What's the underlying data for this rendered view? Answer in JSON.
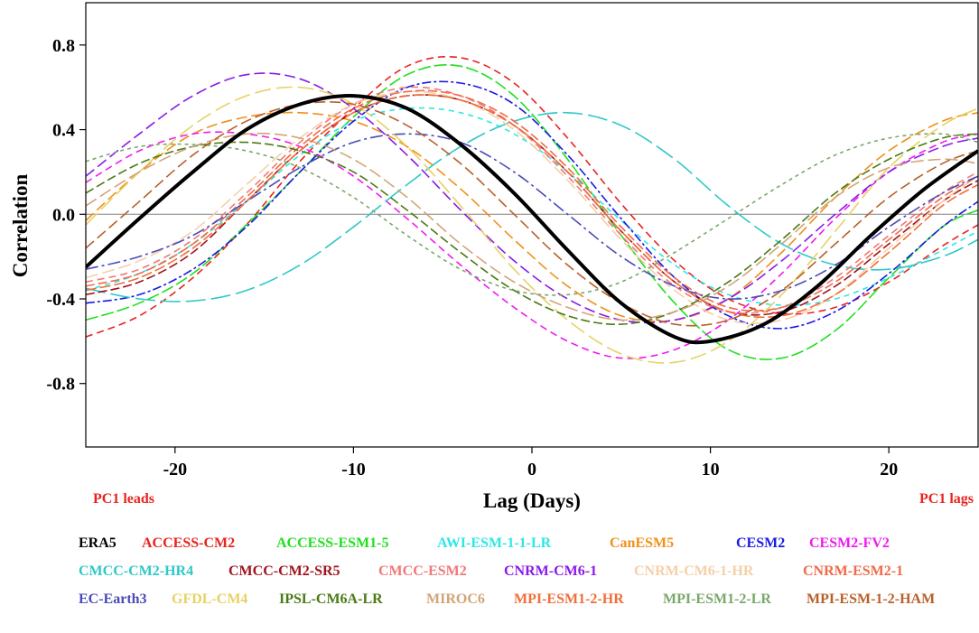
{
  "chart_data": {
    "type": "line",
    "title": "",
    "xlabel": "Lag (Days)",
    "ylabel": "Correlation",
    "xlim": [
      -25,
      25
    ],
    "ylim": [
      -1.1,
      1.0
    ],
    "xticks": [
      -20,
      -10,
      0,
      10,
      20
    ],
    "xtick_labels": [
      "-20",
      "-10",
      "0",
      "10",
      "20"
    ],
    "yticks": [
      -0.8,
      -0.4,
      0.0,
      0.4,
      0.8
    ],
    "ytick_labels": [
      "-0.8",
      "-0.4",
      "0.0",
      "0.4",
      "0.8"
    ],
    "annotations": {
      "left": {
        "text": "PC1 leads",
        "color": "#e8231f"
      },
      "right": {
        "text": "PC1 lags",
        "color": "#e8231f"
      }
    },
    "zero_line_color": "#808080",
    "series": [
      {
        "name": "ERA5",
        "color": "#000000",
        "dash": "solid",
        "width": 4,
        "x": [
          -25,
          -22,
          -19,
          -16,
          -13,
          -10,
          -7,
          -4,
          -1,
          2,
          5,
          8,
          10,
          13,
          16,
          19,
          22,
          25
        ],
        "values": [
          -0.25,
          -0.02,
          0.2,
          0.4,
          0.52,
          0.56,
          0.5,
          0.33,
          0.1,
          -0.17,
          -0.42,
          -0.58,
          -0.6,
          -0.52,
          -0.34,
          -0.1,
          0.12,
          0.3
        ]
      },
      {
        "name": "ACCESS-CM2",
        "color": "#e8231f",
        "dash": "8,5",
        "width": 1.6,
        "x": [
          -25,
          -22,
          -19,
          -16,
          -13,
          -10,
          -7,
          -4,
          -1,
          2,
          5,
          8,
          11,
          14,
          17,
          20,
          23,
          25
        ],
        "values": [
          -0.58,
          -0.48,
          -0.3,
          -0.05,
          0.25,
          0.5,
          0.7,
          0.74,
          0.62,
          0.36,
          0.05,
          -0.22,
          -0.4,
          -0.47,
          -0.44,
          -0.32,
          -0.15,
          -0.05
        ]
      },
      {
        "name": "ACCESS-ESM1-5",
        "color": "#1fe01f",
        "dash": "14,4",
        "width": 1.6,
        "x": [
          -25,
          -22,
          -19,
          -16,
          -13,
          -10,
          -7,
          -4,
          -1,
          2,
          5,
          8,
          11,
          14,
          17,
          20,
          23,
          25
        ],
        "values": [
          -0.5,
          -0.42,
          -0.28,
          -0.05,
          0.2,
          0.46,
          0.66,
          0.7,
          0.56,
          0.26,
          -0.1,
          -0.42,
          -0.64,
          -0.68,
          -0.55,
          -0.3,
          -0.06,
          0.02
        ]
      },
      {
        "name": "AWI-ESM-1-1-LR",
        "color": "#2ee6e6",
        "dash": "6,5",
        "width": 1.6,
        "x": [
          -25,
          -22,
          -19,
          -16,
          -13,
          -10,
          -7,
          -4,
          -1,
          2,
          5,
          8,
          11,
          14,
          17,
          20,
          23,
          25
        ],
        "values": [
          -0.36,
          -0.28,
          -0.14,
          0.06,
          0.28,
          0.44,
          0.5,
          0.48,
          0.38,
          0.2,
          -0.03,
          -0.24,
          -0.38,
          -0.43,
          -0.4,
          -0.3,
          -0.17,
          -0.08
        ]
      },
      {
        "name": "CanESM5",
        "color": "#f0901a",
        "dash": "12,5",
        "width": 1.6,
        "x": [
          -25,
          -22,
          -19,
          -16,
          -13,
          -10,
          -7,
          -4,
          -1,
          2,
          5,
          8,
          11,
          14,
          17,
          20,
          23,
          25
        ],
        "values": [
          -0.03,
          0.2,
          0.38,
          0.46,
          0.48,
          0.44,
          0.32,
          0.12,
          -0.12,
          -0.34,
          -0.48,
          -0.5,
          -0.4,
          -0.18,
          0.08,
          0.3,
          0.44,
          0.48
        ]
      },
      {
        "name": "CESM2",
        "color": "#1a1ae6",
        "dash": "10,3,3,3",
        "width": 1.6,
        "x": [
          -25,
          -22,
          -19,
          -16,
          -13,
          -10,
          -7,
          -4,
          -1,
          2,
          5,
          8,
          11,
          14,
          17,
          20,
          23,
          25
        ],
        "values": [
          -0.42,
          -0.38,
          -0.26,
          -0.06,
          0.2,
          0.44,
          0.6,
          0.62,
          0.52,
          0.28,
          -0.02,
          -0.3,
          -0.48,
          -0.54,
          -0.46,
          -0.28,
          -0.06,
          0.06
        ]
      },
      {
        "name": "CESM2-FV2",
        "color": "#f01af0",
        "dash": "8,5",
        "width": 1.6,
        "x": [
          -25,
          -22,
          -19,
          -16,
          -13,
          -10,
          -7,
          -4,
          -1,
          2,
          5,
          8,
          11,
          14,
          17,
          20,
          23,
          25
        ],
        "values": [
          0.15,
          0.3,
          0.38,
          0.38,
          0.32,
          0.18,
          -0.02,
          -0.24,
          -0.44,
          -0.6,
          -0.68,
          -0.64,
          -0.5,
          -0.28,
          -0.02,
          0.2,
          0.34,
          0.38
        ]
      },
      {
        "name": "CMCC-CM2-HR4",
        "color": "#2fc8c8",
        "dash": "22,6",
        "width": 1.6,
        "x": [
          -25,
          -22,
          -19,
          -16,
          -13,
          -10,
          -7,
          -4,
          -1,
          2,
          5,
          8,
          11,
          14,
          17,
          20,
          23,
          25
        ],
        "values": [
          -0.35,
          -0.4,
          -0.41,
          -0.36,
          -0.24,
          -0.06,
          0.14,
          0.32,
          0.44,
          0.48,
          0.42,
          0.26,
          0.04,
          -0.14,
          -0.24,
          -0.26,
          -0.2,
          -0.12
        ]
      },
      {
        "name": "CMCC-CM2-SR5",
        "color": "#a0141e",
        "dash": "10,4",
        "width": 1.6,
        "x": [
          -25,
          -22,
          -19,
          -16,
          -13,
          -10,
          -7,
          -4,
          -1,
          2,
          5,
          8,
          11,
          14,
          17,
          20,
          23,
          25
        ],
        "values": [
          -0.38,
          -0.32,
          -0.18,
          0.06,
          0.3,
          0.48,
          0.56,
          0.54,
          0.42,
          0.2,
          -0.08,
          -0.32,
          -0.46,
          -0.46,
          -0.34,
          -0.14,
          0.06,
          0.16
        ]
      },
      {
        "name": "CMCC-ESM2",
        "color": "#f07878",
        "dash": "8,5",
        "width": 1.6,
        "x": [
          -25,
          -22,
          -19,
          -16,
          -13,
          -10,
          -7,
          -4,
          -1,
          2,
          5,
          8,
          11,
          14,
          17,
          20,
          23,
          25
        ],
        "values": [
          -0.32,
          -0.26,
          -0.12,
          0.1,
          0.34,
          0.52,
          0.6,
          0.56,
          0.42,
          0.18,
          -0.1,
          -0.34,
          -0.46,
          -0.44,
          -0.3,
          -0.1,
          0.1,
          0.2
        ]
      },
      {
        "name": "CNRM-CM6-1",
        "color": "#8a1ae6",
        "dash": "12,5",
        "width": 1.6,
        "x": [
          -25,
          -22,
          -19,
          -16,
          -13,
          -10,
          -7,
          -4,
          -1,
          2,
          5,
          8,
          11,
          14,
          17,
          20,
          23,
          25
        ],
        "values": [
          0.18,
          0.38,
          0.56,
          0.66,
          0.64,
          0.5,
          0.28,
          0.02,
          -0.22,
          -0.4,
          -0.5,
          -0.5,
          -0.4,
          -0.22,
          0.0,
          0.2,
          0.32,
          0.36
        ]
      },
      {
        "name": "CNRM-CM6-1-HR",
        "color": "#f5cfa8",
        "dash": "14,5",
        "width": 1.6,
        "x": [
          -25,
          -22,
          -19,
          -16,
          -13,
          -10,
          -7,
          -4,
          -1,
          2,
          5,
          8,
          11,
          14,
          17,
          20,
          23,
          25
        ],
        "values": [
          -0.3,
          -0.22,
          -0.08,
          0.14,
          0.36,
          0.52,
          0.58,
          0.54,
          0.4,
          0.16,
          -0.12,
          -0.36,
          -0.5,
          -0.5,
          -0.38,
          -0.16,
          0.06,
          0.18
        ]
      },
      {
        "name": "CNRM-ESM2-1",
        "color": "#f06a4a",
        "dash": "10,4",
        "width": 1.6,
        "x": [
          -25,
          -22,
          -19,
          -16,
          -13,
          -10,
          -7,
          -4,
          -1,
          2,
          5,
          8,
          11,
          14,
          17,
          20,
          23,
          25
        ],
        "values": [
          -0.34,
          -0.28,
          -0.14,
          0.08,
          0.32,
          0.5,
          0.58,
          0.56,
          0.44,
          0.22,
          -0.06,
          -0.3,
          -0.44,
          -0.44,
          -0.32,
          -0.12,
          0.08,
          0.18
        ]
      },
      {
        "name": "EC-Earth3",
        "color": "#4a4ab8",
        "dash": "14,4,3,4",
        "width": 1.6,
        "x": [
          -25,
          -22,
          -19,
          -16,
          -13,
          -10,
          -7,
          -4,
          -1,
          2,
          5,
          8,
          11,
          14,
          17,
          20,
          23,
          25
        ],
        "values": [
          -0.26,
          -0.2,
          -0.1,
          0.06,
          0.22,
          0.34,
          0.38,
          0.34,
          0.2,
          0.0,
          -0.2,
          -0.34,
          -0.4,
          -0.36,
          -0.24,
          -0.06,
          0.1,
          0.18
        ]
      },
      {
        "name": "GFDL-CM4",
        "color": "#e6d264",
        "dash": "18,6",
        "width": 1.6,
        "x": [
          -25,
          -22,
          -19,
          -16,
          -13,
          -10,
          -7,
          -4,
          -1,
          2,
          5,
          8,
          11,
          14,
          17,
          20,
          23,
          25
        ],
        "values": [
          -0.05,
          0.2,
          0.42,
          0.56,
          0.6,
          0.52,
          0.32,
          0.04,
          -0.26,
          -0.5,
          -0.66,
          -0.7,
          -0.6,
          -0.38,
          -0.08,
          0.22,
          0.42,
          0.5
        ]
      },
      {
        "name": "IPSL-CM6A-LR",
        "color": "#4a7a14",
        "dash": "10,4",
        "width": 1.6,
        "x": [
          -25,
          -22,
          -19,
          -16,
          -13,
          -10,
          -7,
          -4,
          -1,
          2,
          5,
          8,
          11,
          14,
          17,
          20,
          23,
          25
        ],
        "values": [
          0.1,
          0.24,
          0.32,
          0.34,
          0.3,
          0.2,
          0.02,
          -0.18,
          -0.36,
          -0.48,
          -0.52,
          -0.46,
          -0.32,
          -0.12,
          0.1,
          0.26,
          0.36,
          0.38
        ]
      },
      {
        "name": "MIROC6",
        "color": "#d2a478",
        "dash": "14,5",
        "width": 1.6,
        "x": [
          -25,
          -22,
          -19,
          -16,
          -13,
          -10,
          -7,
          -4,
          -1,
          2,
          5,
          8,
          11,
          14,
          17,
          20,
          23,
          25
        ],
        "values": [
          0.04,
          0.2,
          0.32,
          0.38,
          0.36,
          0.26,
          0.08,
          -0.14,
          -0.32,
          -0.44,
          -0.5,
          -0.46,
          -0.34,
          -0.14,
          0.08,
          0.22,
          0.26,
          0.24
        ]
      },
      {
        "name": "MPI-ESM1-2-HR",
        "color": "#f06e3a",
        "dash": "12,4",
        "width": 1.6,
        "x": [
          -25,
          -22,
          -19,
          -16,
          -13,
          -10,
          -7,
          -4,
          -1,
          2,
          5,
          8,
          11,
          14,
          17,
          20,
          23,
          25
        ],
        "values": [
          -0.36,
          -0.3,
          -0.16,
          0.06,
          0.3,
          0.48,
          0.56,
          0.54,
          0.42,
          0.2,
          -0.08,
          -0.32,
          -0.46,
          -0.48,
          -0.38,
          -0.18,
          0.04,
          0.14
        ]
      },
      {
        "name": "MPI-ESM1-2-LR",
        "color": "#7aa86a",
        "dash": "4,4",
        "width": 1.6,
        "x": [
          -25,
          -22,
          -19,
          -16,
          -13,
          -10,
          -7,
          -4,
          -1,
          2,
          5,
          8,
          11,
          14,
          17,
          20,
          23,
          25
        ],
        "values": [
          0.25,
          0.32,
          0.33,
          0.3,
          0.22,
          0.08,
          -0.1,
          -0.26,
          -0.36,
          -0.38,
          -0.32,
          -0.18,
          -0.02,
          0.14,
          0.28,
          0.36,
          0.38,
          0.34
        ]
      },
      {
        "name": "MPI-ESM-1-2-HAM",
        "color": "#b8602a",
        "dash": "12,5",
        "width": 1.6,
        "x": [
          -25,
          -22,
          -19,
          -16,
          -13,
          -10,
          -7,
          -4,
          -1,
          2,
          5,
          8,
          11,
          14,
          17,
          20,
          23,
          25
        ],
        "values": [
          -0.16,
          0.06,
          0.28,
          0.44,
          0.52,
          0.52,
          0.42,
          0.24,
          0.0,
          -0.24,
          -0.42,
          -0.52,
          -0.5,
          -0.36,
          -0.14,
          0.08,
          0.24,
          0.3
        ]
      }
    ]
  }
}
